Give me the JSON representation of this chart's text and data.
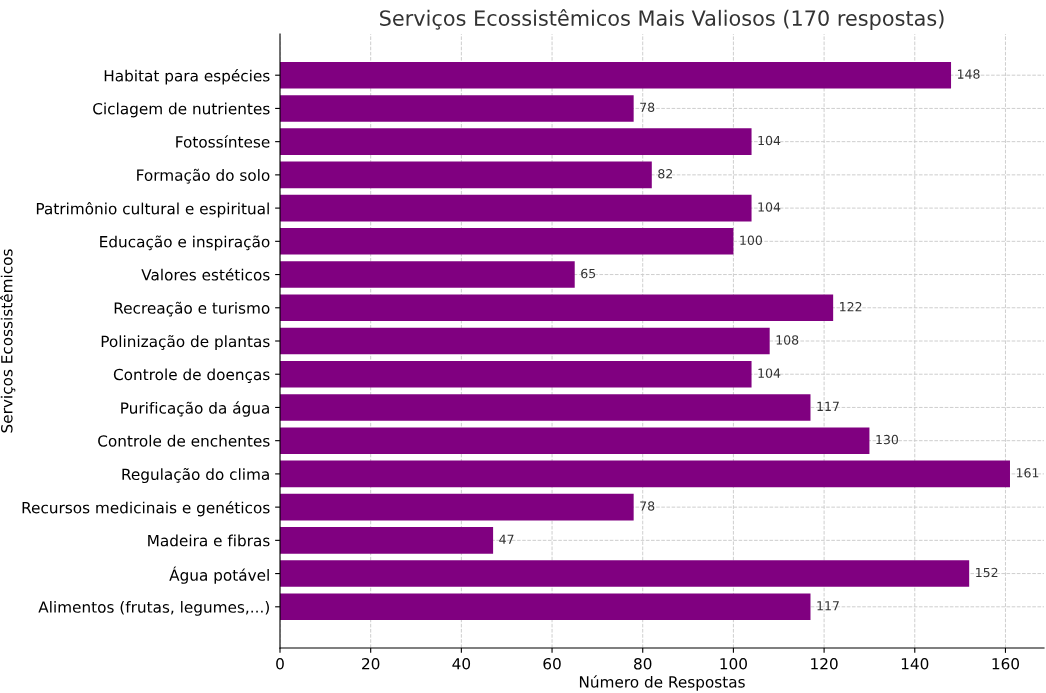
{
  "chart_data": {
    "type": "bar",
    "orientation": "horizontal",
    "title": "Serviços Ecossistêmicos Mais Valiosos (170 respostas)",
    "xlabel": "Número de Respostas",
    "ylabel": "Serviços Ecossistêmicos",
    "categories": [
      "Habitat para espécies",
      "Ciclagem de nutrientes",
      "Fotossíntese",
      "Formação do solo",
      "Patrimônio cultural e espiritual",
      "Educação e inspiração",
      "Valores estéticos",
      "Recreação e turismo",
      "Polinização de plantas",
      "Controle de doenças",
      "Purificação da água",
      "Controle de enchentes",
      "Regulação do clima",
      "Recursos medicinais e genéticos",
      "Madeira e fibras",
      "Água potável",
      "Alimentos (frutas, legumes,...)"
    ],
    "values": [
      148,
      78,
      104,
      82,
      104,
      100,
      65,
      122,
      108,
      104,
      117,
      130,
      161,
      78,
      47,
      152,
      117
    ],
    "color": "#800080",
    "xlim": [
      0,
      168.5
    ],
    "xticks": [
      0,
      20,
      40,
      60,
      80,
      100,
      120,
      140,
      160
    ],
    "grid": true,
    "data_labels": true
  }
}
